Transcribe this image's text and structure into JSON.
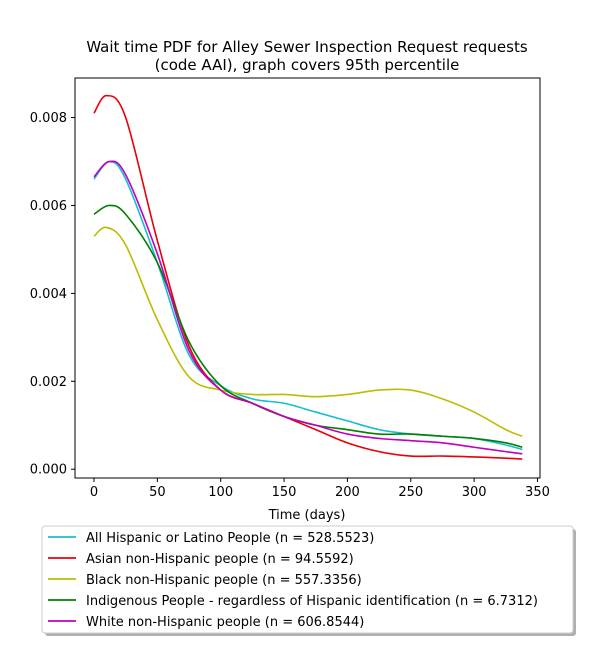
{
  "chart_data": {
    "type": "line",
    "title_line1": "Wait time PDF for Alley Sewer Inspection Request  requests",
    "title_line2": "(code AAI), graph covers 95th percentile",
    "xlabel": "Time (days)",
    "ylabel": "",
    "xlim": [
      -15,
      352
    ],
    "ylim": [
      -0.0002,
      0.0089
    ],
    "xticks": [
      0,
      50,
      100,
      150,
      200,
      250,
      300,
      350
    ],
    "xtick_labels": [
      "0",
      "50",
      "100",
      "150",
      "200",
      "250",
      "300",
      "350"
    ],
    "yticks": [
      0.0,
      0.002,
      0.004,
      0.006,
      0.008
    ],
    "ytick_labels": [
      "0.000",
      "0.002",
      "0.004",
      "0.006",
      "0.008"
    ],
    "grid": false,
    "legend_position": "below plot",
    "series": [
      {
        "name": "All Hispanic or Latino People (n = 528.5523)",
        "color": "#17becf",
        "x": [
          0,
          12,
          25,
          50,
          75,
          100,
          125,
          150,
          175,
          200,
          225,
          250,
          275,
          300,
          325,
          338
        ],
        "y": [
          0.0066,
          0.007,
          0.0066,
          0.0047,
          0.0026,
          0.0019,
          0.0016,
          0.0015,
          0.0013,
          0.0011,
          0.0009,
          0.0008,
          0.00075,
          0.0007,
          0.00055,
          0.00045
        ]
      },
      {
        "name": "Asian non-Hispanic people (n = 94.5592)",
        "color": "#e8000b",
        "x": [
          0,
          10,
          25,
          50,
          75,
          100,
          125,
          150,
          175,
          200,
          225,
          250,
          275,
          300,
          325,
          338
        ],
        "y": [
          0.0081,
          0.0085,
          0.008,
          0.0052,
          0.0028,
          0.0018,
          0.0015,
          0.0012,
          0.0009,
          0.0006,
          0.0004,
          0.0003,
          0.0003,
          0.00028,
          0.00025,
          0.00023
        ]
      },
      {
        "name": "Black non-Hispanic people (n = 557.3356)",
        "color": "#bcbd00",
        "x": [
          0,
          10,
          25,
          50,
          75,
          100,
          125,
          150,
          175,
          200,
          225,
          250,
          275,
          300,
          325,
          338
        ],
        "y": [
          0.0053,
          0.0055,
          0.0051,
          0.0034,
          0.0021,
          0.0018,
          0.0017,
          0.0017,
          0.00165,
          0.0017,
          0.0018,
          0.0018,
          0.0016,
          0.0013,
          0.0009,
          0.00075
        ]
      },
      {
        "name": "Indigenous People - regardless of Hispanic identification (n = 6.7312)",
        "color": "#008000",
        "x": [
          0,
          12,
          25,
          50,
          75,
          100,
          125,
          150,
          175,
          200,
          225,
          250,
          275,
          300,
          325,
          338
        ],
        "y": [
          0.0058,
          0.006,
          0.0058,
          0.0047,
          0.0029,
          0.0019,
          0.0015,
          0.0012,
          0.001,
          0.0009,
          0.0008,
          0.0008,
          0.00075,
          0.0007,
          0.0006,
          0.0005
        ]
      },
      {
        "name": "White non-Hispanic people (n = 606.8544)",
        "color": "#bf00bf",
        "x": [
          0,
          12,
          25,
          50,
          75,
          100,
          125,
          150,
          175,
          200,
          225,
          250,
          275,
          300,
          325,
          338
        ],
        "y": [
          0.00665,
          0.007,
          0.0067,
          0.0049,
          0.0027,
          0.0018,
          0.0015,
          0.0012,
          0.001,
          0.0008,
          0.0007,
          0.00065,
          0.0006,
          0.0005,
          0.0004,
          0.00035
        ]
      }
    ]
  }
}
